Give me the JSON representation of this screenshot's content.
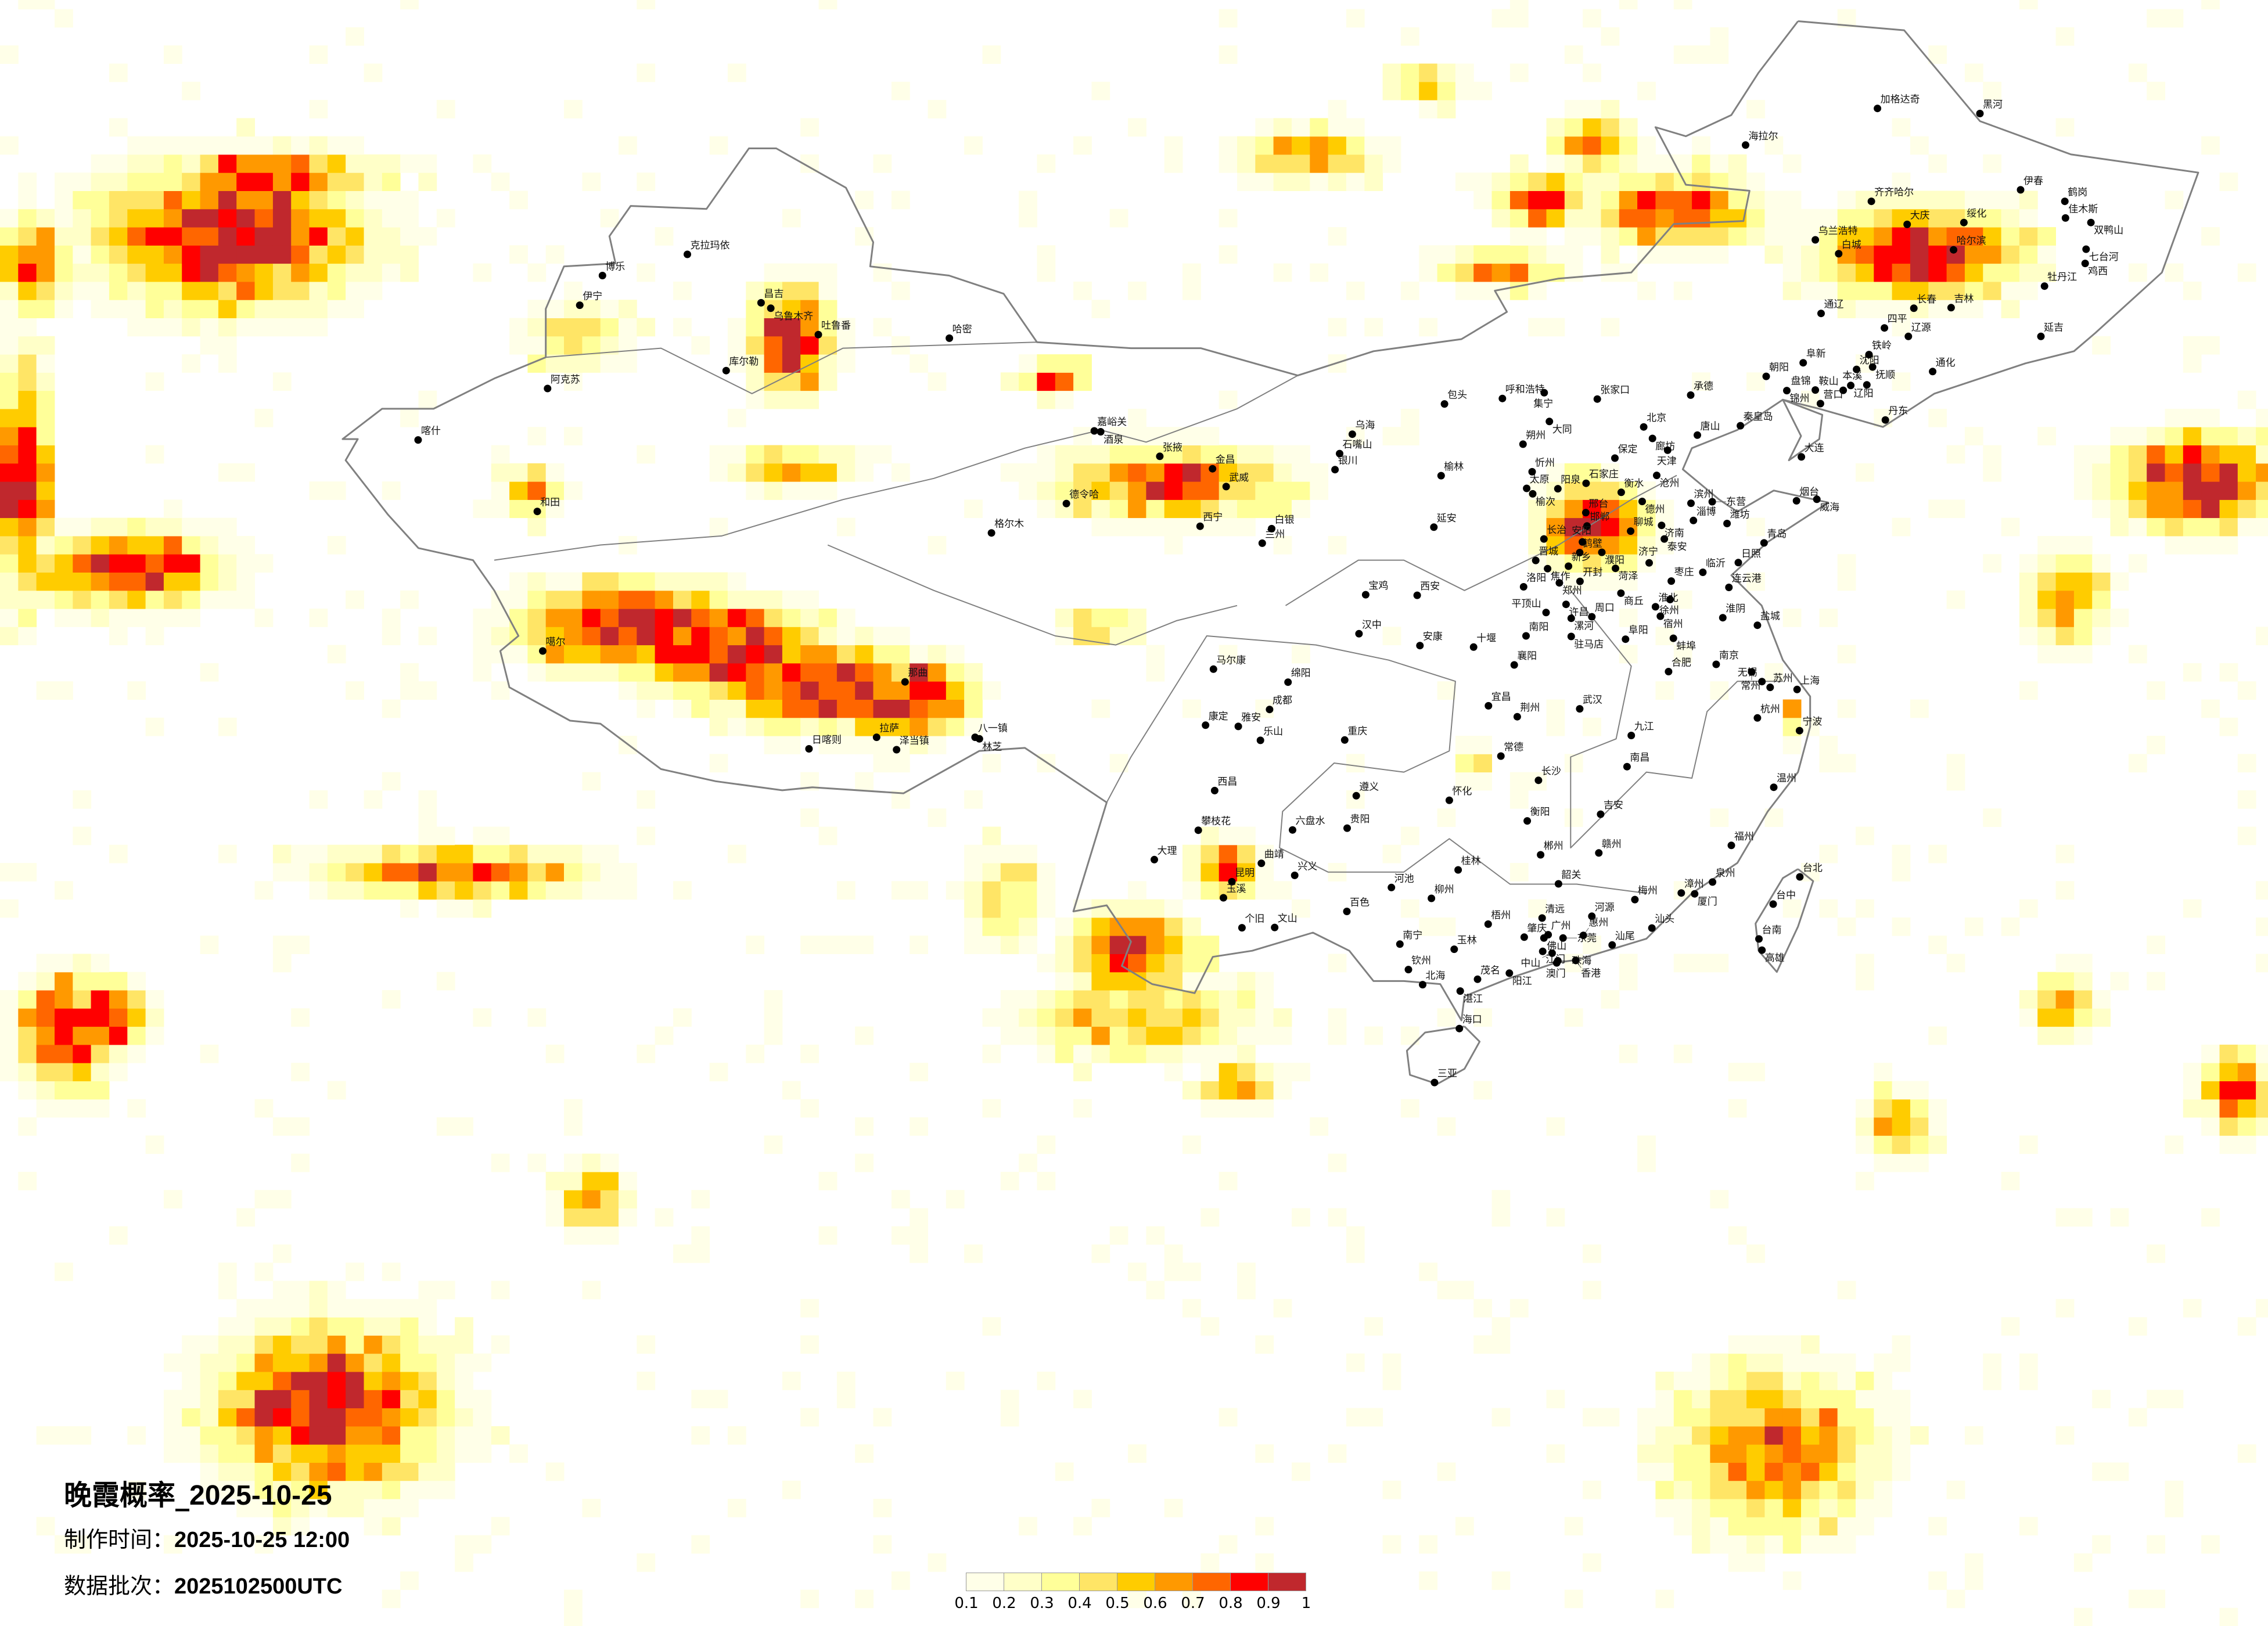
{
  "title": {
    "prefix": "晚霞概率_",
    "date": "2025-10-25"
  },
  "production_time": {
    "label": "制作时间：",
    "value": "2025-10-25 12:00"
  },
  "data_batch": {
    "label": "数据批次：",
    "value": "2025102500UTC"
  },
  "legend": {
    "ticks": [
      "0.1",
      "0.2",
      "0.3",
      "0.4",
      "0.5",
      "0.6",
      "0.7",
      "0.8",
      "0.9",
      "1"
    ],
    "colors": [
      "#FFFFE8",
      "#FFFFC8",
      "#FFFF99",
      "#FFE566",
      "#FFCC00",
      "#FF9900",
      "#FF6600",
      "#FF0000",
      "#C0282D"
    ]
  },
  "map": {
    "projection": "equirectangular",
    "lon_range": [
      62.2,
      137.0
    ],
    "lat_range": [
      0.3,
      54.0
    ],
    "border_color": "#808080",
    "city_marker_color": "#000000",
    "probability_hotspots": [
      [
        69.4,
        45.9,
        4,
        2.2,
        1
      ],
      [
        71,
        47.9,
        3,
        0.8,
        0.9
      ],
      [
        63,
        45,
        1,
        1.5,
        0.8
      ],
      [
        62.7,
        38,
        0.8,
        3.5,
        1
      ],
      [
        66,
        34.9,
        3,
        1.2,
        0.95
      ],
      [
        82.8,
        33,
        3.5,
        1.3,
        1
      ],
      [
        86,
        32.2,
        3,
        1.4,
        1
      ],
      [
        89,
        31.1,
        3,
        1.3,
        1
      ],
      [
        91.6,
        30.3,
        1.8,
        0.9,
        1
      ],
      [
        79.4,
        37.5,
        0.8,
        0.8,
        0.7
      ],
      [
        88,
        42.5,
        1.2,
        1.7,
        1
      ],
      [
        80.9,
        42.6,
        1.6,
        1.1,
        0.5
      ],
      [
        88,
        38.3,
        2,
        0.6,
        0.7
      ],
      [
        96.7,
        41.2,
        1,
        0.5,
        0.9
      ],
      [
        100.4,
        37.8,
        3.5,
        1.1,
        0.85
      ],
      [
        114.5,
        36.3,
        1.6,
        1.3,
        1
      ],
      [
        125.2,
        45.4,
        3,
        1.4,
        1
      ],
      [
        117.1,
        46.8,
        2.5,
        1.1,
        0.9
      ],
      [
        114.5,
        49,
        1.3,
        0.8,
        0.8
      ],
      [
        112.8,
        47.1,
        1.5,
        0.8,
        0.9
      ],
      [
        105,
        48.6,
        2,
        0.8,
        0.7
      ],
      [
        108.8,
        50.9,
        1.2,
        0.6,
        0.6
      ],
      [
        111.4,
        44.8,
        2,
        0.6,
        0.7
      ],
      [
        99.2,
        22.2,
        1.8,
        1.3,
        1
      ],
      [
        102.3,
        25,
        1,
        0.8,
        0.95
      ],
      [
        99.5,
        20,
        3.5,
        1.2,
        0.6
      ],
      [
        102.8,
        17.8,
        1.2,
        0.6,
        0.75
      ],
      [
        134.3,
        37.8,
        2.5,
        1.4,
        1
      ],
      [
        130.1,
        33.9,
        1.2,
        1.5,
        0.7
      ],
      [
        121,
        30.1,
        0.4,
        0.4,
        0.9
      ],
      [
        64.1,
        19.6,
        1.5,
        1.8,
        0.9
      ],
      [
        65.5,
        20.2,
        1.2,
        1,
        1
      ],
      [
        72.7,
        7.2,
        3.5,
        2.5,
        1
      ],
      [
        81.4,
        14.1,
        1,
        1,
        0.7
      ],
      [
        77,
        24.9,
        4,
        0.8,
        0.8
      ],
      [
        120.4,
        5.8,
        3,
        2.5,
        0.8
      ],
      [
        124.5,
        16.5,
        1,
        1,
        0.7
      ],
      [
        130,
        20.5,
        1,
        1,
        0.75
      ],
      [
        135.7,
        17.6,
        1,
        1.2,
        0.9
      ],
      [
        92.4,
        30.8,
        1.5,
        1,
        1
      ],
      [
        98,
        33,
        1,
        0.6,
        0.6
      ],
      [
        110.5,
        28.5,
        0.6,
        0.6,
        0.5
      ],
      [
        95,
        24,
        1.2,
        1.5,
        0.5
      ]
    ],
    "cities": [
      [
        "克拉玛依",
        84.87,
        45.6
      ],
      [
        "博乐",
        82.07,
        44.9
      ],
      [
        "伊宁",
        81.32,
        43.92
      ],
      [
        "昌吉",
        87.3,
        44.0
      ],
      [
        "乌鲁木齐",
        87.62,
        43.82
      ],
      [
        "吐鲁番",
        89.19,
        42.95
      ],
      [
        "哈密",
        93.51,
        42.83
      ],
      [
        "库尔勒",
        86.15,
        41.76
      ],
      [
        "阿克苏",
        80.26,
        41.17
      ],
      [
        "喀什",
        75.99,
        39.47
      ],
      [
        "和田",
        79.92,
        37.11
      ],
      [
        "噶尔",
        80.1,
        32.5
      ],
      [
        "那曲",
        92.05,
        31.48
      ],
      [
        "拉萨",
        91.11,
        29.65
      ],
      [
        "日喀则",
        88.88,
        29.27
      ],
      [
        "泽当镇",
        91.77,
        29.24
      ],
      [
        "八一镇",
        94.36,
        29.65
      ],
      [
        "林芝",
        94.5,
        29.6
      ],
      [
        "格尔木",
        94.9,
        36.4
      ],
      [
        "德令哈",
        97.37,
        37.37
      ],
      [
        "嘉峪关",
        98.29,
        39.77
      ],
      [
        "酒泉",
        98.5,
        39.74
      ],
      [
        "张掖",
        100.45,
        38.93
      ],
      [
        "金昌",
        102.19,
        38.52
      ],
      [
        "武威",
        102.64,
        37.93
      ],
      [
        "西宁",
        101.78,
        36.62
      ],
      [
        "兰州",
        103.83,
        36.06
      ],
      [
        "白银",
        104.14,
        36.54
      ],
      [
        "银川",
        106.23,
        38.49
      ],
      [
        "石嘴山",
        106.38,
        39.02
      ],
      [
        "乌海",
        106.8,
        39.66
      ],
      [
        "包头",
        109.84,
        40.66
      ],
      [
        "呼和浩特",
        111.75,
        40.84
      ],
      [
        "集宁",
        113.13,
        41.03
      ],
      [
        "张家口",
        114.88,
        40.82
      ],
      [
        "大同",
        113.3,
        40.08
      ],
      [
        "朔州",
        112.43,
        39.33
      ],
      [
        "忻州",
        112.73,
        38.42
      ],
      [
        "太原",
        112.55,
        37.87
      ],
      [
        "榆次",
        112.75,
        37.69
      ],
      [
        "阳泉",
        113.58,
        37.86
      ],
      [
        "石家庄",
        114.51,
        38.04
      ],
      [
        "保定",
        115.46,
        38.87
      ],
      [
        "北京",
        116.41,
        39.9
      ],
      [
        "廊坊",
        116.7,
        39.52
      ],
      [
        "天津",
        117.2,
        39.13
      ],
      [
        "唐山",
        118.18,
        39.63
      ],
      [
        "承德",
        117.96,
        40.95
      ],
      [
        "秦皇岛",
        119.6,
        39.94
      ],
      [
        "沧州",
        116.84,
        38.3
      ],
      [
        "衡水",
        115.67,
        37.74
      ],
      [
        "德州",
        116.36,
        37.44
      ],
      [
        "邢台",
        114.5,
        37.07
      ],
      [
        "邯郸",
        114.54,
        36.63
      ],
      [
        "长治",
        113.12,
        36.2
      ],
      [
        "晋城",
        112.85,
        35.49
      ],
      [
        "鹤壁",
        114.3,
        35.75
      ],
      [
        "新乡",
        113.93,
        35.3
      ],
      [
        "焦作",
        113.24,
        35.22
      ],
      [
        "安阳",
        114.39,
        36.1
      ],
      [
        "濮阳",
        115.03,
        35.76
      ],
      [
        "聊城",
        115.98,
        36.46
      ],
      [
        "济南",
        117.0,
        36.65
      ],
      [
        "泰安",
        117.09,
        36.2
      ],
      [
        "淄博",
        118.05,
        36.81
      ],
      [
        "滨州",
        117.97,
        37.38
      ],
      [
        "东营",
        118.67,
        37.43
      ],
      [
        "潍坊",
        119.16,
        36.71
      ],
      [
        "烟台",
        121.45,
        37.46
      ],
      [
        "威海",
        122.12,
        37.51
      ],
      [
        "青岛",
        120.38,
        36.07
      ],
      [
        "日照",
        119.53,
        35.42
      ],
      [
        "临沂",
        118.36,
        35.1
      ],
      [
        "枣庄",
        117.32,
        34.81
      ],
      [
        "济宁",
        116.59,
        35.41
      ],
      [
        "菏泽",
        115.48,
        35.23
      ],
      [
        "郑州",
        113.63,
        34.75
      ],
      [
        "开封",
        114.31,
        34.8
      ],
      [
        "洛阳",
        112.45,
        34.62
      ],
      [
        "商丘",
        115.66,
        34.41
      ],
      [
        "许昌",
        113.85,
        34.04
      ],
      [
        "平顶山",
        113.19,
        33.77
      ],
      [
        "漯河",
        114.02,
        33.58
      ],
      [
        "周口",
        114.7,
        33.63
      ],
      [
        "南阳",
        112.53,
        33.0
      ],
      [
        "驻马店",
        114.02,
        32.98
      ],
      [
        "阜阳",
        115.81,
        32.89
      ],
      [
        "淮北",
        116.8,
        33.96
      ],
      [
        "宿州",
        116.96,
        33.65
      ],
      [
        "蚌埠",
        117.39,
        32.92
      ],
      [
        "连云港",
        119.22,
        34.6
      ],
      [
        "淮阴",
        119.02,
        33.6
      ],
      [
        "盐城",
        120.16,
        33.35
      ],
      [
        "南京",
        118.8,
        32.06
      ],
      [
        "上海",
        121.47,
        31.23
      ],
      [
        "杭州",
        120.16,
        30.29
      ],
      [
        "合肥",
        117.23,
        31.82
      ],
      [
        "武汉",
        114.3,
        30.59
      ],
      [
        "长沙",
        112.94,
        28.23
      ],
      [
        "南昌",
        115.86,
        28.68
      ],
      [
        "福州",
        119.3,
        26.08
      ],
      [
        "泉州",
        118.68,
        24.87
      ],
      [
        "厦门",
        118.09,
        24.48
      ],
      [
        "漳州",
        117.65,
        24.51
      ],
      [
        "梅州",
        116.12,
        24.29
      ],
      [
        "韶关",
        113.6,
        24.81
      ],
      [
        "清远",
        113.06,
        23.68
      ],
      [
        "河源",
        114.7,
        23.74
      ],
      [
        "汕头",
        116.68,
        23.35
      ],
      [
        "汕尾",
        115.37,
        22.79
      ],
      [
        "广州",
        113.26,
        23.13
      ],
      [
        "肇庆",
        112.47,
        23.05
      ],
      [
        "佛山",
        113.12,
        23.02
      ],
      [
        "东莞",
        113.75,
        23.02
      ],
      [
        "惠州",
        114.42,
        23.11
      ],
      [
        "江门",
        113.08,
        22.58
      ],
      [
        "中山",
        113.39,
        22.52
      ],
      [
        "澳门",
        113.54,
        22.2
      ],
      [
        "珠海",
        113.58,
        22.27
      ],
      [
        "香港",
        114.17,
        22.28
      ],
      [
        "阳江",
        111.98,
        21.86
      ],
      [
        "茂名",
        110.93,
        21.66
      ],
      [
        "湛江",
        110.36,
        21.27
      ],
      [
        "北海",
        109.12,
        21.48
      ],
      [
        "钦州",
        108.65,
        21.98
      ],
      [
        "南宁",
        108.37,
        22.82
      ],
      [
        "玉林",
        110.16,
        22.65
      ],
      [
        "梧州",
        111.28,
        23.48
      ],
      [
        "柳州",
        109.41,
        24.33
      ],
      [
        "河池",
        108.09,
        24.69
      ],
      [
        "百色",
        106.62,
        23.9
      ],
      [
        "桂林",
        110.29,
        25.27
      ],
      [
        "海口",
        110.33,
        20.03
      ],
      [
        "三亚",
        109.51,
        18.25
      ],
      [
        "台北",
        121.56,
        25.04
      ],
      [
        "台中",
        120.68,
        24.14
      ],
      [
        "台南",
        120.21,
        22.99
      ],
      [
        "高雄",
        120.31,
        22.62
      ],
      [
        "昆明",
        102.83,
        24.88
      ],
      [
        "大理",
        100.27,
        25.61
      ],
      [
        "玉溪",
        102.55,
        24.35
      ],
      [
        "个旧",
        103.16,
        23.36
      ],
      [
        "文山",
        104.24,
        23.37
      ],
      [
        "曲靖",
        103.8,
        25.49
      ],
      [
        "贵阳",
        106.63,
        26.65
      ],
      [
        "遵义",
        106.93,
        27.72
      ],
      [
        "六盘水",
        104.83,
        26.59
      ],
      [
        "兴义",
        104.9,
        25.09
      ],
      [
        "重庆",
        106.55,
        29.56
      ],
      [
        "成都",
        104.07,
        30.57
      ],
      [
        "绵阳",
        104.68,
        31.47
      ],
      [
        "乐山",
        103.77,
        29.55
      ],
      [
        "雅安",
        103.04,
        30.01
      ],
      [
        "西昌",
        102.26,
        27.89
      ],
      [
        "攀枝花",
        101.72,
        26.58
      ],
      [
        "马尔康",
        102.22,
        31.9
      ],
      [
        "康定",
        101.96,
        30.05
      ],
      [
        "西安",
        108.94,
        34.34
      ],
      [
        "宝鸡",
        107.24,
        34.36
      ],
      [
        "汉中",
        107.02,
        33.07
      ],
      [
        "安康",
        109.03,
        32.68
      ],
      [
        "延安",
        109.49,
        36.59
      ],
      [
        "榆林",
        109.73,
        38.29
      ],
      [
        "十堰",
        110.8,
        32.63
      ],
      [
        "襄阳",
        112.14,
        32.04
      ],
      [
        "宜昌",
        111.29,
        30.69
      ],
      [
        "荆州",
        112.24,
        30.33
      ],
      [
        "常德",
        111.7,
        29.03
      ],
      [
        "怀化",
        110.0,
        27.57
      ],
      [
        "衡阳",
        112.57,
        26.89
      ],
      [
        "郴州",
        113.01,
        25.77
      ],
      [
        "赣州",
        114.93,
        25.83
      ],
      [
        "吉安",
        114.99,
        27.11
      ],
      [
        "九江",
        116.0,
        29.71
      ],
      [
        "宁波",
        121.55,
        29.87
      ],
      [
        "温州",
        120.7,
        28.0
      ],
      [
        "苏州",
        120.58,
        31.3
      ],
      [
        "无锡",
        120.31,
        31.49
      ],
      [
        "常州",
        119.97,
        31.81
      ],
      [
        "徐州",
        117.28,
        34.2
      ],
      [
        "沈阳",
        123.43,
        41.8
      ],
      [
        "抚顺",
        123.96,
        41.88
      ],
      [
        "铁岭",
        123.84,
        42.29
      ],
      [
        "辽阳",
        123.24,
        41.27
      ],
      [
        "鞍山",
        122.99,
        41.11
      ],
      [
        "本溪",
        123.77,
        41.29
      ],
      [
        "营口",
        122.24,
        40.67
      ],
      [
        "盘锦",
        122.07,
        41.12
      ],
      [
        "锦州",
        121.13,
        41.1
      ],
      [
        "阜新",
        121.67,
        42.02
      ],
      [
        "朝阳",
        120.45,
        41.57
      ],
      [
        "丹东",
        124.38,
        40.13
      ],
      [
        "大连",
        121.61,
        38.91
      ],
      [
        "四平",
        124.35,
        43.17
      ],
      [
        "辽源",
        125.14,
        42.89
      ],
      [
        "通化",
        125.94,
        41.73
      ],
      [
        "长春",
        125.32,
        43.82
      ],
      [
        "吉林",
        126.55,
        43.84
      ],
      [
        "延吉",
        129.51,
        42.89
      ],
      [
        "白城",
        122.84,
        45.62
      ],
      [
        "乌兰浩特",
        122.07,
        46.08
      ],
      [
        "通辽",
        122.26,
        43.65
      ],
      [
        "哈尔滨",
        126.63,
        45.75
      ],
      [
        "大庆",
        125.1,
        46.59
      ],
      [
        "齐齐哈尔",
        123.92,
        47.35
      ],
      [
        "绥化",
        126.97,
        46.65
      ],
      [
        "伊春",
        128.84,
        47.73
      ],
      [
        "鹤岗",
        130.3,
        47.35
      ],
      [
        "佳木斯",
        130.32,
        46.8
      ],
      [
        "双鸭山",
        131.16,
        46.65
      ],
      [
        "七台河",
        131.0,
        45.77
      ],
      [
        "鸡西",
        130.97,
        45.3
      ],
      [
        "牡丹江",
        129.63,
        44.55
      ],
      [
        "海拉尔",
        119.77,
        49.21
      ],
      [
        "加格达奇",
        124.12,
        50.42
      ],
      [
        "黑河",
        127.5,
        50.25
      ]
    ]
  }
}
